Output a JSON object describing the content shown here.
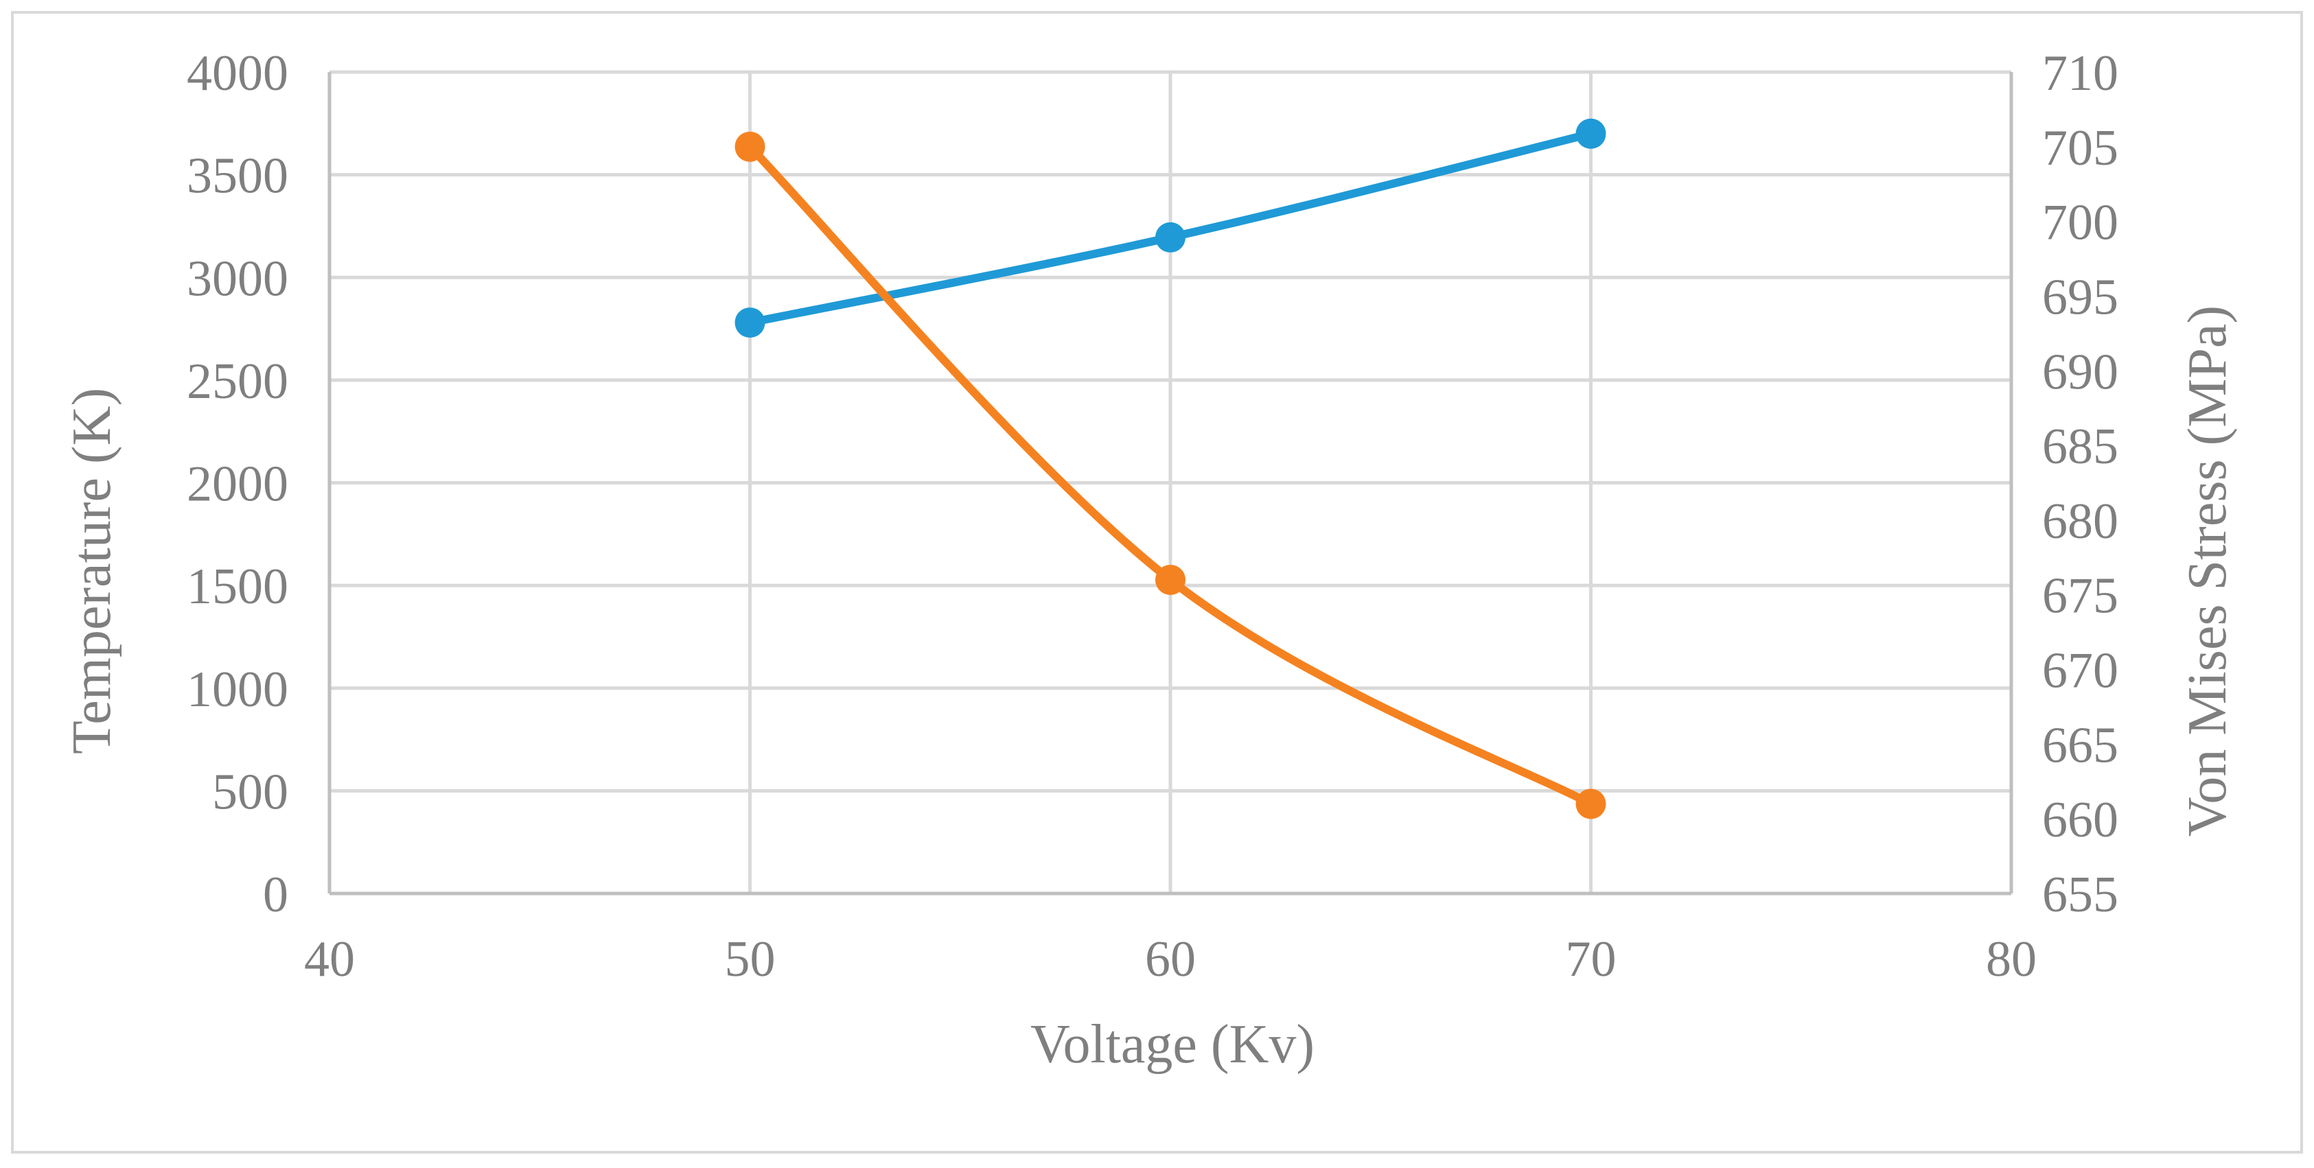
{
  "chart_data": {
    "type": "line",
    "title": "",
    "xlabel": "Voltage (Kv)",
    "ylabel": "Temperature (K)",
    "y2label": "Von Mises Stress (MPa)",
    "xlim": [
      40,
      80
    ],
    "ylim": [
      0,
      4000
    ],
    "y2lim": [
      655,
      710
    ],
    "x_ticks": [
      "40",
      "50",
      "60",
      "70",
      "80"
    ],
    "y_ticks": [
      "0",
      "500",
      "1000",
      "1500",
      "2000",
      "2500",
      "3000",
      "3500",
      "4000"
    ],
    "y2_ticks": [
      "655",
      "660",
      "665",
      "670",
      "675",
      "680",
      "685",
      "690",
      "695",
      "700",
      "705",
      "710"
    ],
    "grid": true,
    "legend": "none",
    "series": [
      {
        "name": "Temperature",
        "axis": "left",
        "color": "#1f9ad6",
        "x": [
          50,
          60,
          70
        ],
        "values": [
          2780,
          3195,
          3700
        ]
      },
      {
        "name": "Von Mises Stress",
        "axis": "right",
        "color": "#f58220",
        "x": [
          50,
          60,
          70
        ],
        "values": [
          705,
          676,
          661
        ]
      }
    ]
  }
}
